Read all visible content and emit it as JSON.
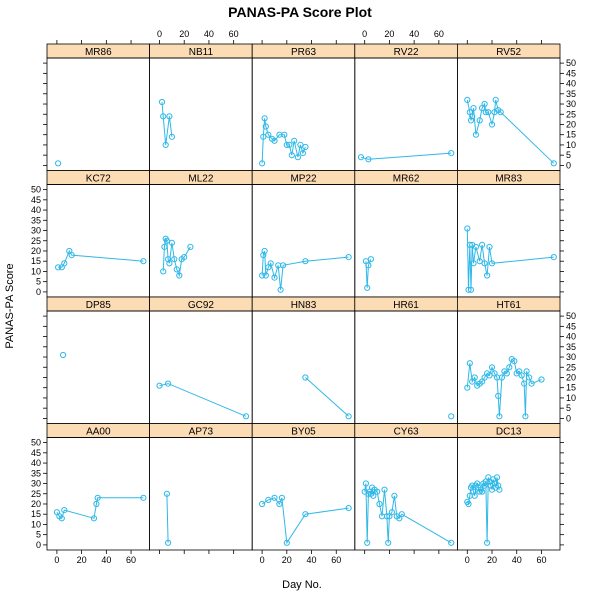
{
  "chart_data": {
    "type": "line",
    "title": "PANAS-PA Score Plot",
    "xlabel": "Day No.",
    "ylabel": "PANAS-PA Score",
    "xlim": [
      -8,
      75
    ],
    "ylim": [
      0,
      50
    ],
    "x_ticks": [
      0,
      20,
      40,
      60
    ],
    "y_ticks": [
      0,
      5,
      10,
      15,
      20,
      25,
      30,
      35,
      40,
      45,
      50
    ],
    "colors": {
      "series": "#2fb8e8",
      "strip": "#fcdcb5",
      "frame": "#000000"
    },
    "layout": {
      "cols": 5,
      "rows": 4
    },
    "panels": [
      {
        "name": "MR86",
        "x": [
          1
        ],
        "y": [
          1
        ]
      },
      {
        "name": "NB11",
        "x": [
          2,
          3,
          5,
          8,
          10
        ],
        "y": [
          31,
          24,
          10,
          24,
          14
        ]
      },
      {
        "name": "PR63",
        "x": [
          0,
          1,
          2,
          3,
          5,
          8,
          10,
          14,
          18,
          20,
          22,
          24,
          26,
          29,
          31,
          33,
          35
        ],
        "y": [
          1,
          14,
          23,
          19,
          15,
          13,
          12,
          15,
          15,
          10,
          10,
          5,
          12,
          4,
          10,
          6,
          9
        ]
      },
      {
        "name": "RV22",
        "x": [
          -3,
          3,
          70
        ],
        "y": [
          4,
          3,
          6
        ]
      },
      {
        "name": "RV52",
        "x": [
          0,
          2,
          3,
          4,
          5,
          7,
          10,
          12,
          14,
          15,
          17,
          20,
          22,
          23,
          25,
          27,
          70
        ],
        "y": [
          32,
          26,
          22,
          24,
          28,
          15,
          22,
          28,
          30,
          26,
          26,
          20,
          26,
          32,
          27,
          26,
          1
        ]
      },
      {
        "name": "KC72",
        "x": [
          1,
          4,
          6,
          10,
          12,
          70
        ],
        "y": [
          12,
          12,
          14,
          20,
          18,
          15
        ]
      },
      {
        "name": "ML22",
        "x": [
          3,
          4,
          5,
          6,
          7,
          8,
          10,
          12,
          14,
          16,
          18,
          20,
          25
        ],
        "y": [
          10,
          22,
          26,
          25,
          16,
          14,
          24,
          16,
          11,
          8,
          16,
          17,
          22
        ]
      },
      {
        "name": "MP22",
        "x": [
          0,
          1,
          2,
          3,
          5,
          7,
          10,
          13,
          15,
          17,
          35,
          70
        ],
        "y": [
          8,
          18,
          20,
          8,
          12,
          14,
          7,
          13,
          1,
          13,
          15,
          17
        ]
      },
      {
        "name": "MR62",
        "x": [
          1,
          2,
          3,
          5
        ],
        "y": [
          15,
          2,
          13,
          16
        ]
      },
      {
        "name": "MR83",
        "x": [
          0,
          1,
          2,
          3,
          4,
          5,
          7,
          10,
          12,
          14,
          16,
          18,
          20,
          70
        ],
        "y": [
          31,
          1,
          23,
          1,
          23,
          14,
          22,
          15,
          23,
          14,
          8,
          22,
          14,
          17
        ]
      },
      {
        "name": "DP85",
        "x": [
          5
        ],
        "y": [
          31
        ]
      },
      {
        "name": "GC92",
        "x": [
          0,
          7,
          70
        ],
        "y": [
          16,
          17,
          1
        ]
      },
      {
        "name": "HN83",
        "x": [
          35,
          70
        ],
        "y": [
          20,
          1
        ]
      },
      {
        "name": "HR61",
        "x": [
          70
        ],
        "y": [
          1
        ]
      },
      {
        "name": "HT61",
        "x": [
          0,
          2,
          4,
          6,
          8,
          10,
          12,
          14,
          16,
          18,
          20,
          22,
          24,
          25,
          26,
          28,
          30,
          32,
          34,
          36,
          38,
          40,
          42,
          44,
          46,
          47,
          48,
          50,
          52,
          60
        ],
        "y": [
          15,
          27,
          18,
          20,
          16,
          17,
          18,
          20,
          22,
          21,
          25,
          22,
          20,
          11,
          1,
          20,
          23,
          22,
          25,
          29,
          28,
          22,
          23,
          21,
          17,
          1,
          23,
          20,
          17,
          19
        ]
      },
      {
        "name": "AA00",
        "x": [
          0,
          2,
          4,
          6,
          30,
          32,
          33,
          70
        ],
        "y": [
          16,
          14,
          13,
          17,
          13,
          20,
          23,
          23
        ]
      },
      {
        "name": "AP73",
        "x": [
          6,
          7
        ],
        "y": [
          25,
          1
        ]
      },
      {
        "name": "BY05",
        "x": [
          0,
          5,
          10,
          14,
          16,
          20,
          35,
          70
        ],
        "y": [
          20,
          22,
          23,
          20,
          23,
          1,
          15,
          18
        ]
      },
      {
        "name": "CY63",
        "x": [
          0,
          1,
          2,
          3,
          4,
          5,
          6,
          7,
          8,
          10,
          12,
          14,
          16,
          18,
          19,
          20,
          22,
          24,
          26,
          28,
          30,
          70
        ],
        "y": [
          26,
          30,
          1,
          25,
          26,
          25,
          28,
          24,
          27,
          26,
          20,
          14,
          27,
          14,
          1,
          14,
          16,
          24,
          14,
          13,
          15,
          1
        ]
      },
      {
        "name": "DC13",
        "x": [
          0,
          1,
          2,
          3,
          4,
          5,
          6,
          7,
          8,
          9,
          10,
          11,
          12,
          13,
          14,
          15,
          16,
          17,
          18,
          19,
          20,
          21,
          22,
          23,
          24,
          25,
          26
        ],
        "y": [
          21,
          20,
          24,
          28,
          29,
          26,
          24,
          29,
          30,
          28,
          26,
          27,
          26,
          30,
          29,
          31,
          1,
          33,
          31,
          29,
          27,
          32,
          30,
          28,
          33,
          29,
          27
        ]
      }
    ]
  }
}
